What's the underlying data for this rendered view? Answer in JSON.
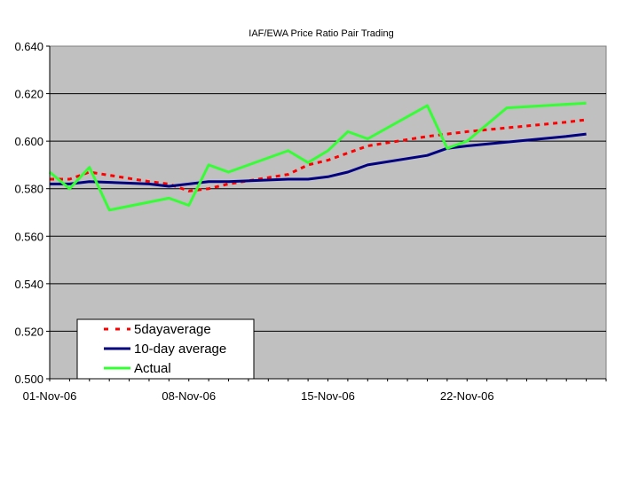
{
  "chart_data": {
    "type": "line",
    "title": "IAF/EWA Price Ratio Pair Trading",
    "xlabel": "",
    "ylabel": "",
    "ylim": [
      0.5,
      0.64
    ],
    "yticks": [
      "0.500",
      "0.520",
      "0.540",
      "0.560",
      "0.580",
      "0.600",
      "0.620",
      "0.640"
    ],
    "xlim": [
      "2006-11-01",
      "2006-11-29"
    ],
    "xticks": [
      {
        "date": "2006-11-01",
        "label": "01-Nov-06"
      },
      {
        "date": "2006-11-08",
        "label": "08-Nov-06"
      },
      {
        "date": "2006-11-15",
        "label": "15-Nov-06"
      },
      {
        "date": "2006-11-22",
        "label": "22-Nov-06"
      }
    ],
    "grid": "horizontal",
    "plot_background": "#c0c0c0",
    "legend_position": "bottom-left",
    "series": [
      {
        "name": "5dayaverage",
        "color": "#ff0000",
        "style": "dashed",
        "points": [
          [
            "2006-11-01",
            0.584
          ],
          [
            "2006-11-02",
            0.584
          ],
          [
            "2006-11-03",
            0.587
          ],
          [
            "2006-11-06",
            0.583
          ],
          [
            "2006-11-07",
            0.582
          ],
          [
            "2006-11-08",
            0.579
          ],
          [
            "2006-11-09",
            0.58
          ],
          [
            "2006-11-10",
            0.582
          ],
          [
            "2006-11-13",
            0.586
          ],
          [
            "2006-11-14",
            0.59
          ],
          [
            "2006-11-15",
            0.592
          ],
          [
            "2006-11-16",
            0.595
          ],
          [
            "2006-11-17",
            0.598
          ],
          [
            "2006-11-20",
            0.602
          ],
          [
            "2006-11-21",
            0.603
          ],
          [
            "2006-11-22",
            0.604
          ],
          [
            "2006-11-27",
            0.608
          ],
          [
            "2006-11-28",
            0.609
          ]
        ]
      },
      {
        "name": "10-day average",
        "color": "#000080",
        "style": "solid",
        "points": [
          [
            "2006-11-01",
            0.582
          ],
          [
            "2006-11-02",
            0.582
          ],
          [
            "2006-11-03",
            0.583
          ],
          [
            "2006-11-06",
            0.582
          ],
          [
            "2006-11-07",
            0.581
          ],
          [
            "2006-11-08",
            0.582
          ],
          [
            "2006-11-09",
            0.583
          ],
          [
            "2006-11-10",
            0.583
          ],
          [
            "2006-11-13",
            0.584
          ],
          [
            "2006-11-14",
            0.584
          ],
          [
            "2006-11-15",
            0.585
          ],
          [
            "2006-11-16",
            0.587
          ],
          [
            "2006-11-17",
            0.59
          ],
          [
            "2006-11-20",
            0.594
          ],
          [
            "2006-11-21",
            0.597
          ],
          [
            "2006-11-22",
            0.598
          ],
          [
            "2006-11-27",
            0.602
          ],
          [
            "2006-11-28",
            0.603
          ]
        ]
      },
      {
        "name": "Actual",
        "color": "#33ff33",
        "style": "solid",
        "points": [
          [
            "2006-11-01",
            0.587
          ],
          [
            "2006-11-02",
            0.58
          ],
          [
            "2006-11-03",
            0.589
          ],
          [
            "2006-11-04",
            0.571
          ],
          [
            "2006-11-07",
            0.576
          ],
          [
            "2006-11-08",
            0.573
          ],
          [
            "2006-11-09",
            0.59
          ],
          [
            "2006-11-10",
            0.587
          ],
          [
            "2006-11-13",
            0.596
          ],
          [
            "2006-11-14",
            0.591
          ],
          [
            "2006-11-15",
            0.596
          ],
          [
            "2006-11-16",
            0.604
          ],
          [
            "2006-11-17",
            0.601
          ],
          [
            "2006-11-20",
            0.615
          ],
          [
            "2006-11-21",
            0.597
          ],
          [
            "2006-11-22",
            0.6
          ],
          [
            "2006-11-24",
            0.614
          ],
          [
            "2006-11-28",
            0.616
          ]
        ]
      }
    ]
  }
}
